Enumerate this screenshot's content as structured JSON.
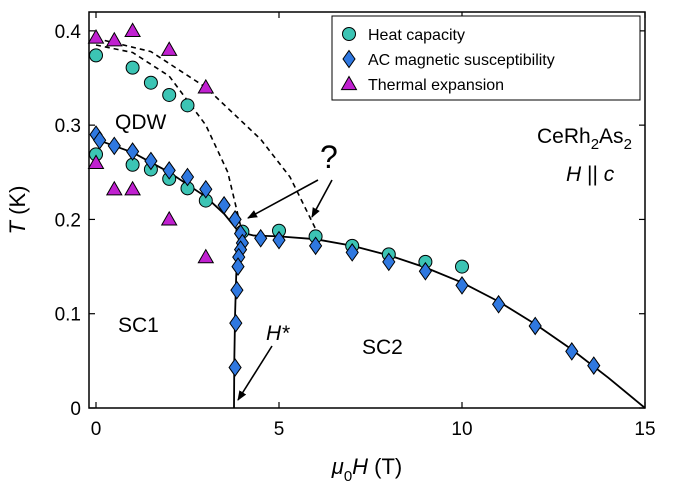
{
  "chart_data": {
    "type": "scatter",
    "xlabel_var": "μ",
    "xlabel_sub": "0",
    "xlabel_var2": "H",
    "xlabel_unit": " (T)",
    "ylabel_var": "T",
    "ylabel_unit": " (K)",
    "xlim": [
      0,
      15
    ],
    "ylim": [
      0,
      0.42
    ],
    "xticks": [
      "0",
      "5",
      "10",
      "15"
    ],
    "xtick_values": [
      0,
      5,
      10,
      15
    ],
    "yticks": [
      "0",
      "0.1",
      "0.2",
      "0.3",
      "0.4"
    ],
    "ytick_values": [
      0,
      0.1,
      0.2,
      0.3,
      0.4
    ],
    "legend_position": "top-right",
    "grid": false,
    "series": [
      {
        "name": "Heat capacity",
        "marker": "circle",
        "color": "#3cc4b4",
        "points": [
          [
            0.0,
            0.374
          ],
          [
            1.0,
            0.361
          ],
          [
            1.5,
            0.345
          ],
          [
            2.0,
            0.332
          ],
          [
            2.5,
            0.321
          ],
          [
            0.0,
            0.269
          ],
          [
            1.0,
            0.258
          ],
          [
            1.5,
            0.253
          ],
          [
            2.0,
            0.243
          ],
          [
            2.5,
            0.233
          ],
          [
            3.0,
            0.22
          ],
          [
            4.0,
            0.187
          ],
          [
            5.0,
            0.188
          ],
          [
            6.0,
            0.182
          ],
          [
            7.0,
            0.172
          ],
          [
            8.0,
            0.163
          ],
          [
            9.0,
            0.155
          ],
          [
            10.0,
            0.15
          ]
        ]
      },
      {
        "name": "AC magnetic susceptibility",
        "marker": "diamond",
        "color": "#2f78e0",
        "points": [
          [
            0.0,
            0.29
          ],
          [
            0.1,
            0.284
          ],
          [
            0.5,
            0.278
          ],
          [
            1.0,
            0.272
          ],
          [
            1.5,
            0.262
          ],
          [
            2.0,
            0.252
          ],
          [
            2.5,
            0.245
          ],
          [
            3.0,
            0.232
          ],
          [
            3.5,
            0.215
          ],
          [
            3.8,
            0.2
          ],
          [
            3.95,
            0.185
          ],
          [
            4.0,
            0.175
          ],
          [
            3.95,
            0.168
          ],
          [
            3.9,
            0.16
          ],
          [
            3.88,
            0.15
          ],
          [
            3.85,
            0.125
          ],
          [
            3.82,
            0.09
          ],
          [
            3.8,
            0.043
          ],
          [
            4.5,
            0.18
          ],
          [
            5.0,
            0.178
          ],
          [
            6.0,
            0.172
          ],
          [
            7.0,
            0.165
          ],
          [
            8.0,
            0.155
          ],
          [
            9.0,
            0.145
          ],
          [
            10.0,
            0.13
          ],
          [
            11.0,
            0.11
          ],
          [
            12.0,
            0.087
          ],
          [
            13.0,
            0.06
          ],
          [
            13.6,
            0.045
          ]
        ]
      },
      {
        "name": "Thermal expansion",
        "marker": "triangle",
        "color": "#c020d0",
        "points": [
          [
            0.0,
            0.393
          ],
          [
            0.5,
            0.39
          ],
          [
            1.0,
            0.4
          ],
          [
            2.0,
            0.38
          ],
          [
            3.0,
            0.34
          ],
          [
            0.0,
            0.26
          ],
          [
            0.5,
            0.232
          ],
          [
            1.0,
            0.232
          ],
          [
            2.0,
            0.2
          ],
          [
            3.0,
            0.16
          ]
        ]
      }
    ],
    "phase_boundaries_solid": [
      [
        [
          0,
          0.285
        ],
        [
          1,
          0.271
        ],
        [
          2,
          0.25
        ],
        [
          3,
          0.224
        ],
        [
          3.5,
          0.206
        ],
        [
          3.9,
          0.187
        ],
        [
          4.3,
          0.183
        ],
        [
          5,
          0.182
        ],
        [
          6,
          0.179
        ],
        [
          7,
          0.172
        ],
        [
          8,
          0.162
        ],
        [
          9,
          0.149
        ],
        [
          10,
          0.133
        ],
        [
          11,
          0.113
        ],
        [
          12,
          0.089
        ],
        [
          13,
          0.062
        ],
        [
          14,
          0.032
        ],
        [
          15,
          0.0
        ]
      ],
      [
        [
          3.93,
          0.186
        ],
        [
          3.87,
          0.17
        ],
        [
          3.83,
          0.14
        ],
        [
          3.8,
          0.1
        ],
        [
          3.78,
          0.05
        ],
        [
          3.77,
          0.0
        ]
      ]
    ],
    "phase_boundaries_dashed": [
      [
        [
          0,
          0.385
        ],
        [
          1,
          0.377
        ],
        [
          2,
          0.352
        ],
        [
          3,
          0.3
        ],
        [
          3.6,
          0.25
        ],
        [
          4.0,
          0.185
        ]
      ],
      [
        [
          0,
          0.392
        ],
        [
          1.5,
          0.378
        ],
        [
          3,
          0.34
        ],
        [
          4.5,
          0.285
        ],
        [
          5.3,
          0.245
        ],
        [
          6.0,
          0.19
        ]
      ]
    ],
    "annotations": {
      "qdw": "QDW",
      "sc1": "SC1",
      "sc2": "SC2",
      "hstar": "H*",
      "question": "?",
      "compound_base": "CeRh",
      "compound_sub1": "2",
      "compound_mid": "As",
      "compound_sub2": "2",
      "field_dir_var": "H",
      "field_dir_rel": " || ",
      "field_dir_var2": "c"
    }
  }
}
